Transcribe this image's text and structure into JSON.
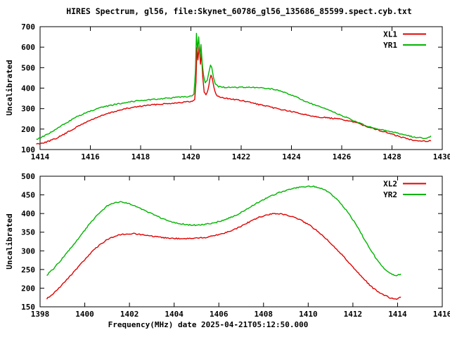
{
  "title": "HIRES Spectrum, gl56, file:Skynet_60786_gl56_135686_85599.spect.cyb.txt",
  "colors": {
    "background": "#ffffff",
    "frame": "#000000",
    "text": "#000000",
    "series_red": "#e00000",
    "series_green": "#00b400"
  },
  "chart_data": [
    {
      "type": "line",
      "ylabel": "Uncalibrated",
      "xlabel": "",
      "xlim": [
        1414,
        1430
      ],
      "ylim": [
        100,
        700
      ],
      "xticks": [
        1414,
        1416,
        1418,
        1420,
        1422,
        1424,
        1426,
        1428,
        1430
      ],
      "yticks": [
        100,
        200,
        300,
        400,
        500,
        600,
        700
      ],
      "grid": false,
      "legend_position": "top-right-inside",
      "series": [
        {
          "name": "XL1",
          "color": "#e00000",
          "points": [
            [
              1413.85,
              127
            ],
            [
              1414.2,
              135
            ],
            [
              1414.6,
              152
            ],
            [
              1415.0,
              178
            ],
            [
              1415.4,
              206
            ],
            [
              1415.8,
              232
            ],
            [
              1416.2,
              254
            ],
            [
              1416.6,
              272
            ],
            [
              1417.0,
              287
            ],
            [
              1417.4,
              299
            ],
            [
              1417.8,
              308
            ],
            [
              1418.2,
              315
            ],
            [
              1418.6,
              320
            ],
            [
              1419.0,
              324
            ],
            [
              1419.4,
              328
            ],
            [
              1419.8,
              332
            ],
            [
              1420.05,
              335
            ],
            [
              1420.15,
              342
            ],
            [
              1420.2,
              430
            ],
            [
              1420.24,
              598
            ],
            [
              1420.28,
              540
            ],
            [
              1420.33,
              612
            ],
            [
              1420.38,
              515
            ],
            [
              1420.42,
              572
            ],
            [
              1420.47,
              455
            ],
            [
              1420.53,
              382
            ],
            [
              1420.6,
              366
            ],
            [
              1420.68,
              390
            ],
            [
              1420.75,
              440
            ],
            [
              1420.8,
              462
            ],
            [
              1420.85,
              448
            ],
            [
              1420.92,
              402
            ],
            [
              1421.0,
              370
            ],
            [
              1421.1,
              358
            ],
            [
              1421.3,
              352
            ],
            [
              1421.6,
              347
            ],
            [
              1421.9,
              341
            ],
            [
              1422.3,
              332
            ],
            [
              1422.7,
              320
            ],
            [
              1423.1,
              309
            ],
            [
              1423.5,
              298
            ],
            [
              1423.9,
              288
            ],
            [
              1424.3,
              277
            ],
            [
              1424.7,
              267
            ],
            [
              1425.1,
              259
            ],
            [
              1425.5,
              254
            ],
            [
              1425.9,
              249
            ],
            [
              1426.3,
              240
            ],
            [
              1426.7,
              226
            ],
            [
              1427.1,
              209
            ],
            [
              1427.5,
              193
            ],
            [
              1427.9,
              179
            ],
            [
              1428.3,
              163
            ],
            [
              1428.7,
              150
            ],
            [
              1429.0,
              144
            ],
            [
              1429.25,
              141
            ],
            [
              1429.55,
              143
            ]
          ]
        },
        {
          "name": "YR1",
          "color": "#00b400",
          "points": [
            [
              1413.85,
              150
            ],
            [
              1414.2,
              168
            ],
            [
              1414.6,
              196
            ],
            [
              1415.0,
              228
            ],
            [
              1415.4,
              256
            ],
            [
              1415.8,
              278
            ],
            [
              1416.2,
              296
            ],
            [
              1416.6,
              310
            ],
            [
              1417.0,
              321
            ],
            [
              1417.4,
              330
            ],
            [
              1417.8,
              337
            ],
            [
              1418.2,
              342
            ],
            [
              1418.6,
              346
            ],
            [
              1419.0,
              350
            ],
            [
              1419.4,
              354
            ],
            [
              1419.8,
              358
            ],
            [
              1420.05,
              363
            ],
            [
              1420.12,
              372
            ],
            [
              1420.18,
              480
            ],
            [
              1420.22,
              665
            ],
            [
              1420.26,
              585
            ],
            [
              1420.31,
              648
            ],
            [
              1420.36,
              545
            ],
            [
              1420.4,
              612
            ],
            [
              1420.45,
              525
            ],
            [
              1420.5,
              465
            ],
            [
              1420.57,
              428
            ],
            [
              1420.65,
              438
            ],
            [
              1420.72,
              478
            ],
            [
              1420.78,
              515
            ],
            [
              1420.83,
              502
            ],
            [
              1420.9,
              452
            ],
            [
              1420.97,
              420
            ],
            [
              1421.1,
              408
            ],
            [
              1421.3,
              404
            ],
            [
              1421.6,
              403
            ],
            [
              1422.0,
              404
            ],
            [
              1422.4,
              403
            ],
            [
              1422.8,
              401
            ],
            [
              1423.2,
              396
            ],
            [
              1423.6,
              385
            ],
            [
              1424.0,
              367
            ],
            [
              1424.4,
              344
            ],
            [
              1424.8,
              323
            ],
            [
              1425.2,
              305
            ],
            [
              1425.6,
              287
            ],
            [
              1426.0,
              266
            ],
            [
              1426.4,
              245
            ],
            [
              1426.8,
              224
            ],
            [
              1427.2,
              206
            ],
            [
              1427.6,
              195
            ],
            [
              1428.0,
              187
            ],
            [
              1428.4,
              175
            ],
            [
              1428.8,
              163
            ],
            [
              1429.1,
              157
            ],
            [
              1429.3,
              155
            ],
            [
              1429.55,
              165
            ]
          ]
        }
      ]
    },
    {
      "type": "line",
      "ylabel": "Uncalibrated",
      "xlabel": "Frequency(MHz) date 2025-04-21T05:12:50.000",
      "xlim": [
        1398,
        1416
      ],
      "ylim": [
        150,
        500
      ],
      "xticks": [
        1398,
        1400,
        1402,
        1404,
        1406,
        1408,
        1410,
        1412,
        1414,
        1416
      ],
      "yticks": [
        150,
        200,
        250,
        300,
        350,
        400,
        450,
        500
      ],
      "grid": false,
      "legend_position": "top-right-inside",
      "series": [
        {
          "name": "XL2",
          "color": "#e00000",
          "points": [
            [
              1398.3,
              172
            ],
            [
              1398.6,
              186
            ],
            [
              1399.0,
              210
            ],
            [
              1399.4,
              236
            ],
            [
              1399.8,
              263
            ],
            [
              1400.2,
              290
            ],
            [
              1400.6,
              313
            ],
            [
              1401.0,
              330
            ],
            [
              1401.4,
              341
            ],
            [
              1401.8,
              345
            ],
            [
              1402.2,
              346
            ],
            [
              1402.6,
              343
            ],
            [
              1403.0,
              339
            ],
            [
              1403.4,
              336
            ],
            [
              1403.8,
              334
            ],
            [
              1404.2,
              333
            ],
            [
              1404.6,
              333
            ],
            [
              1405.0,
              334
            ],
            [
              1405.4,
              336
            ],
            [
              1405.8,
              341
            ],
            [
              1406.2,
              347
            ],
            [
              1406.6,
              355
            ],
            [
              1407.0,
              366
            ],
            [
              1407.4,
              379
            ],
            [
              1407.8,
              390
            ],
            [
              1408.2,
              397
            ],
            [
              1408.5,
              400
            ],
            [
              1408.9,
              398
            ],
            [
              1409.3,
              391
            ],
            [
              1409.7,
              381
            ],
            [
              1410.1,
              367
            ],
            [
              1410.5,
              349
            ],
            [
              1410.9,
              327
            ],
            [
              1411.3,
              303
            ],
            [
              1411.7,
              277
            ],
            [
              1412.1,
              250
            ],
            [
              1412.5,
              224
            ],
            [
              1412.9,
              200
            ],
            [
              1413.3,
              184
            ],
            [
              1413.7,
              173
            ],
            [
              1413.95,
              170
            ],
            [
              1414.15,
              176
            ]
          ]
        },
        {
          "name": "YR2",
          "color": "#00b400",
          "points": [
            [
              1398.3,
              235
            ],
            [
              1398.6,
              252
            ],
            [
              1399.0,
              280
            ],
            [
              1399.4,
              309
            ],
            [
              1399.8,
              340
            ],
            [
              1400.2,
              371
            ],
            [
              1400.6,
              398
            ],
            [
              1401.0,
              420
            ],
            [
              1401.3,
              429
            ],
            [
              1401.6,
              431
            ],
            [
              1401.9,
              428
            ],
            [
              1402.2,
              421
            ],
            [
              1402.6,
              411
            ],
            [
              1403.0,
              399
            ],
            [
              1403.4,
              388
            ],
            [
              1403.8,
              379
            ],
            [
              1404.2,
              373
            ],
            [
              1404.6,
              370
            ],
            [
              1405.0,
              369
            ],
            [
              1405.4,
              371
            ],
            [
              1405.8,
              375
            ],
            [
              1406.2,
              382
            ],
            [
              1406.6,
              391
            ],
            [
              1407.0,
              403
            ],
            [
              1407.4,
              417
            ],
            [
              1407.8,
              431
            ],
            [
              1408.2,
              444
            ],
            [
              1408.6,
              454
            ],
            [
              1409.0,
              462
            ],
            [
              1409.4,
              468
            ],
            [
              1409.8,
              472
            ],
            [
              1410.2,
              473
            ],
            [
              1410.6,
              468
            ],
            [
              1411.0,
              454
            ],
            [
              1411.4,
              431
            ],
            [
              1411.8,
              401
            ],
            [
              1412.2,
              365
            ],
            [
              1412.6,
              322
            ],
            [
              1413.0,
              283
            ],
            [
              1413.4,
              253
            ],
            [
              1413.7,
              239
            ],
            [
              1413.95,
              233
            ],
            [
              1414.15,
              238
            ]
          ]
        }
      ]
    }
  ]
}
